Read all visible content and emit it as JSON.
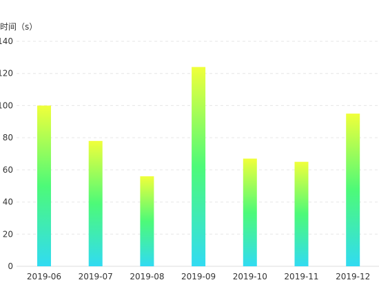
{
  "chart_data": {
    "type": "bar",
    "ylabel": "时间（s）",
    "categories": [
      "2019-06",
      "2019-07",
      "2019-08",
      "2019-09",
      "2019-10",
      "2019-11",
      "2019-12"
    ],
    "values": [
      100,
      78,
      56,
      124,
      67,
      65,
      95
    ],
    "ylim": [
      0,
      140
    ],
    "yticks": [
      0,
      20,
      40,
      60,
      80,
      100,
      120,
      140
    ],
    "grid": true,
    "gradient_colors": {
      "top": "#f0ff3a",
      "middle": "#4dfa78",
      "bottom": "#31dbf2"
    }
  }
}
